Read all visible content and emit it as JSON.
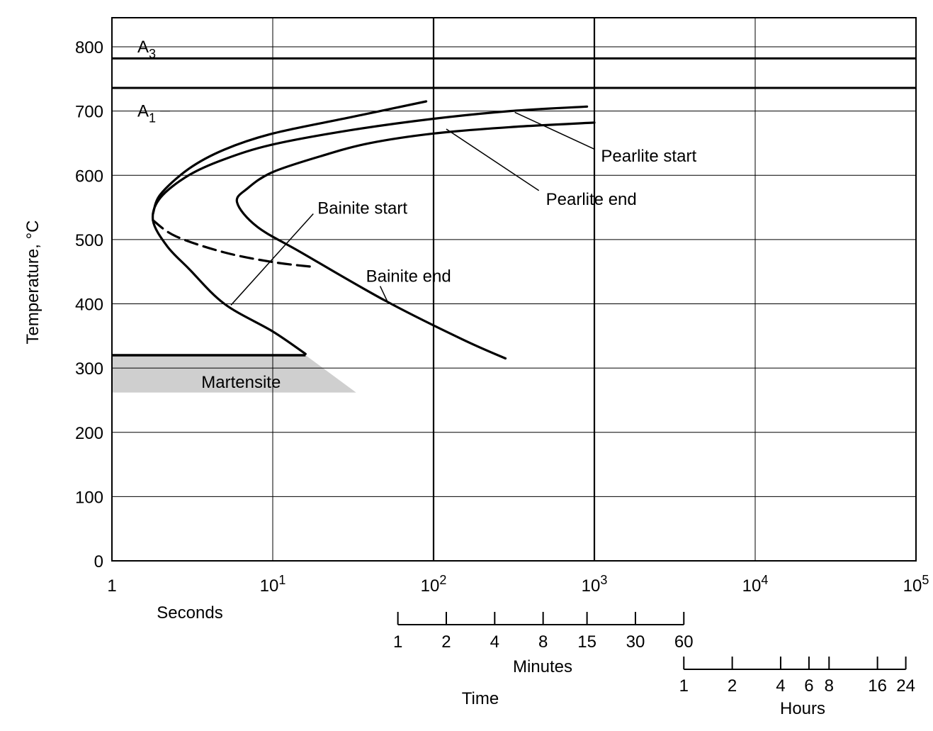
{
  "chart_data": {
    "type": "line",
    "title": "",
    "ylabel": "Temperature, °C",
    "xlabel": "Time",
    "x_scale": "log",
    "xlim": [
      1,
      100000
    ],
    "ylim": [
      0,
      850
    ],
    "grid": true,
    "y_ticks": [
      0,
      100,
      200,
      300,
      400,
      500,
      600,
      700,
      800
    ],
    "x_ticks": [
      {
        "value": 1,
        "base": "1",
        "exp": ""
      },
      {
        "value": 10,
        "base": "10",
        "exp": "1"
      },
      {
        "value": 100,
        "base": "10",
        "exp": "2"
      },
      {
        "value": 1000,
        "base": "10",
        "exp": "3"
      },
      {
        "value": 10000,
        "base": "10",
        "exp": "4"
      },
      {
        "value": 100000,
        "base": "10",
        "exp": "5"
      }
    ],
    "seconds_label": "Seconds",
    "minutes_axis": {
      "label": "Minutes",
      "ticks": [
        1,
        2,
        4,
        8,
        15,
        30,
        60
      ],
      "unit_seconds": 60
    },
    "hours_axis": {
      "label": "Hours",
      "ticks": [
        1,
        2,
        4,
        6,
        8,
        16,
        24
      ],
      "unit_seconds": 3600
    },
    "reference_lines": [
      {
        "label_base": "A",
        "label_sub": "3",
        "y": 782
      },
      {
        "label_base": "A",
        "label_sub": "1",
        "y": 736
      }
    ],
    "series": [
      {
        "name": "Pearlite start",
        "style": "solid",
        "points": [
          [
            90,
            715
          ],
          [
            30,
            690
          ],
          [
            10,
            665
          ],
          [
            5,
            640
          ],
          [
            3,
            610
          ],
          [
            2,
            570
          ],
          [
            1.8,
            540
          ]
        ]
      },
      {
        "name": "",
        "style": "solid",
        "points": [
          [
            900,
            707
          ],
          [
            300,
            700
          ],
          [
            100,
            688
          ],
          [
            30,
            670
          ],
          [
            10,
            648
          ],
          [
            5,
            625
          ],
          [
            3,
            600
          ],
          [
            2,
            565
          ],
          [
            1.8,
            530
          ],
          [
            2.2,
            490
          ],
          [
            3,
            455
          ],
          [
            5,
            400
          ],
          [
            10,
            357
          ],
          [
            16,
            322
          ]
        ]
      },
      {
        "name": "",
        "style": "dashed",
        "points": [
          [
            1.8,
            530
          ],
          [
            2.5,
            505
          ],
          [
            5,
            480
          ],
          [
            10,
            465
          ],
          [
            17,
            458
          ]
        ]
      },
      {
        "name": "Pearlite end",
        "style": "solid",
        "points": [
          [
            1000,
            682
          ],
          [
            300,
            675
          ],
          [
            100,
            665
          ],
          [
            40,
            650
          ],
          [
            20,
            630
          ],
          [
            10,
            605
          ],
          [
            7,
            580
          ],
          [
            6,
            558
          ],
          [
            8,
            520
          ],
          [
            15,
            480
          ],
          [
            50,
            405
          ],
          [
            150,
            345
          ],
          [
            280,
            315
          ]
        ]
      }
    ],
    "annotations": [
      {
        "text": "Pearlite start",
        "x": 1100,
        "y": 630
      },
      {
        "text": "Pearlite end",
        "x": 500,
        "y": 563
      },
      {
        "text": "Bainite start",
        "x": 19,
        "y": 549
      },
      {
        "text": "Bainite end",
        "x": 38,
        "y": 443
      },
      {
        "text": "Martensite",
        "x": 3.6,
        "y": 278
      }
    ],
    "martensite": {
      "label": "Martensite",
      "start_y": 320,
      "bottom_y": 262,
      "start_x": 16,
      "band_right_x": 33
    }
  }
}
